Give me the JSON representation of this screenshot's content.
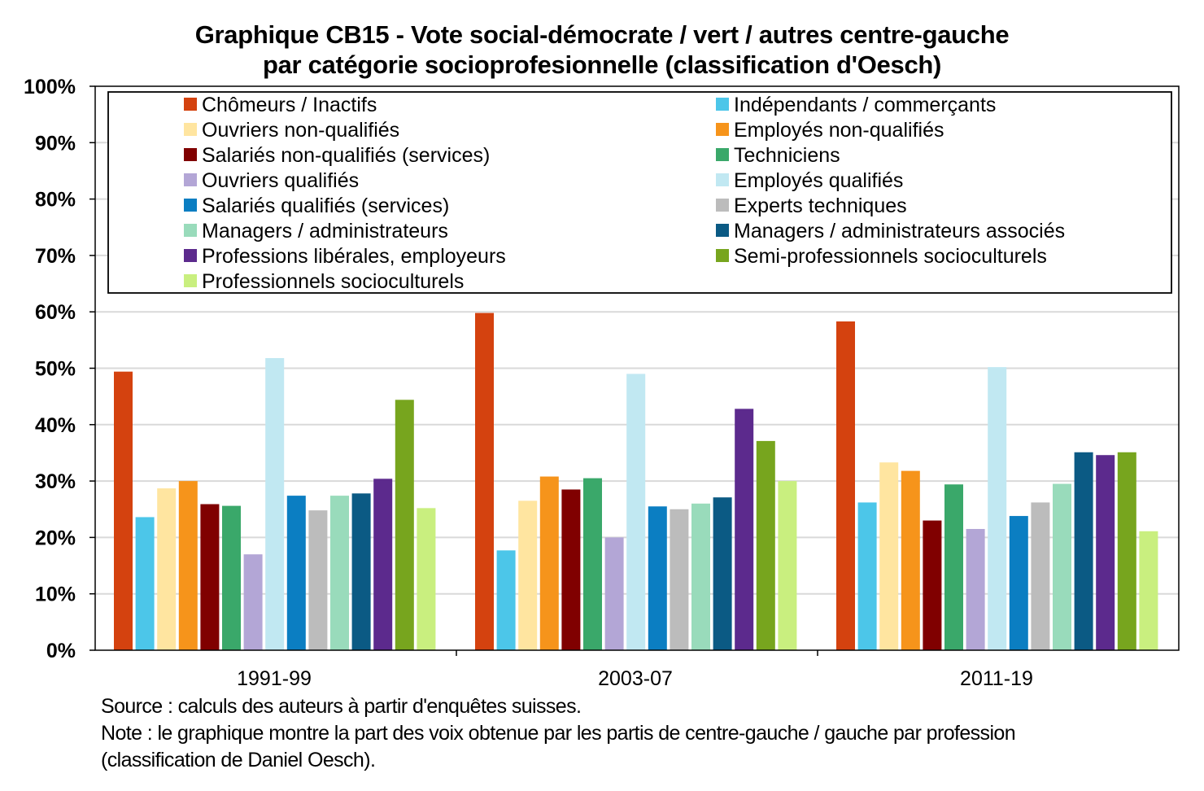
{
  "title_line1": "Graphique CB15 - Vote social-démocrate / vert / autres centre-gauche",
  "title_line2": "par catégorie socioprofesionnelle (classification d'Oesch)",
  "source_text": "Source : calculs des auteurs à partir d'enquêtes suisses.",
  "note_line1": "Note : le graphique montre la part des voix obtenue par les partis de centre-gauche / gauche par profession",
  "note_line2": "(classification de Daniel Oesch).",
  "chart_data": {
    "type": "bar",
    "title": "Graphique CB15 - Vote social-démocrate / vert / autres centre-gauche par catégorie socioprofesionnelle (classification d'Oesch)",
    "xlabel": "",
    "ylabel": "",
    "ylim": [
      0,
      1
    ],
    "y_ticks": [
      0,
      0.1,
      0.2,
      0.3,
      0.4,
      0.5,
      0.6,
      0.7,
      0.8,
      0.9,
      1.0
    ],
    "y_tick_labels": [
      "0%",
      "10%",
      "20%",
      "30%",
      "40%",
      "50%",
      "60%",
      "70%",
      "80%",
      "90%",
      "100%"
    ],
    "grid": true,
    "legend_position": "top, inside plot, two columns",
    "categories": [
      "1991-99",
      "2003-07",
      "2011-19"
    ],
    "series": [
      {
        "name": "Chômeurs / Inactifs",
        "color": "#d4420f",
        "values": [
          0.494,
          0.598,
          0.583
        ]
      },
      {
        "name": "Indépendants / commerçants",
        "color": "#4cc6e9",
        "values": [
          0.236,
          0.177,
          0.262
        ]
      },
      {
        "name": "Ouvriers non-qualifiés",
        "color": "#ffe5a0",
        "values": [
          0.287,
          0.265,
          0.333
        ]
      },
      {
        "name": "Employés non-qualifiés",
        "color": "#f6941b",
        "values": [
          0.3,
          0.308,
          0.318
        ]
      },
      {
        "name": "Salariés non-qualifiés (services)",
        "color": "#800000",
        "values": [
          0.259,
          0.285,
          0.23
        ]
      },
      {
        "name": "Techniciens",
        "color": "#3aa86a",
        "values": [
          0.256,
          0.305,
          0.294
        ]
      },
      {
        "name": "Ouvriers qualifiés",
        "color": "#b3a6d6",
        "values": [
          0.17,
          0.2,
          0.215
        ]
      },
      {
        "name": "Employés qualifiés",
        "color": "#c1e8f2",
        "values": [
          0.518,
          0.49,
          0.502
        ]
      },
      {
        "name": "Salariés qualifiés (services)",
        "color": "#0b7ec2",
        "values": [
          0.274,
          0.255,
          0.238
        ]
      },
      {
        "name": "Experts techniques",
        "color": "#bcbcbc",
        "values": [
          0.248,
          0.25,
          0.262
        ]
      },
      {
        "name": "Managers / administrateurs",
        "color": "#99dbbb",
        "values": [
          0.274,
          0.26,
          0.295
        ]
      },
      {
        "name": "Managers / administrateurs associés",
        "color": "#0b5a84",
        "values": [
          0.278,
          0.271,
          0.351
        ]
      },
      {
        "name": "Professions libérales, employeurs",
        "color": "#5c2a8d",
        "values": [
          0.304,
          0.428,
          0.346
        ]
      },
      {
        "name": "Semi-professionnels socioculturels",
        "color": "#77a51e",
        "values": [
          0.444,
          0.371,
          0.351
        ]
      },
      {
        "name": "Professionnels socioculturels",
        "color": "#c9ef7f",
        "values": [
          0.252,
          0.3,
          0.211
        ]
      }
    ]
  }
}
